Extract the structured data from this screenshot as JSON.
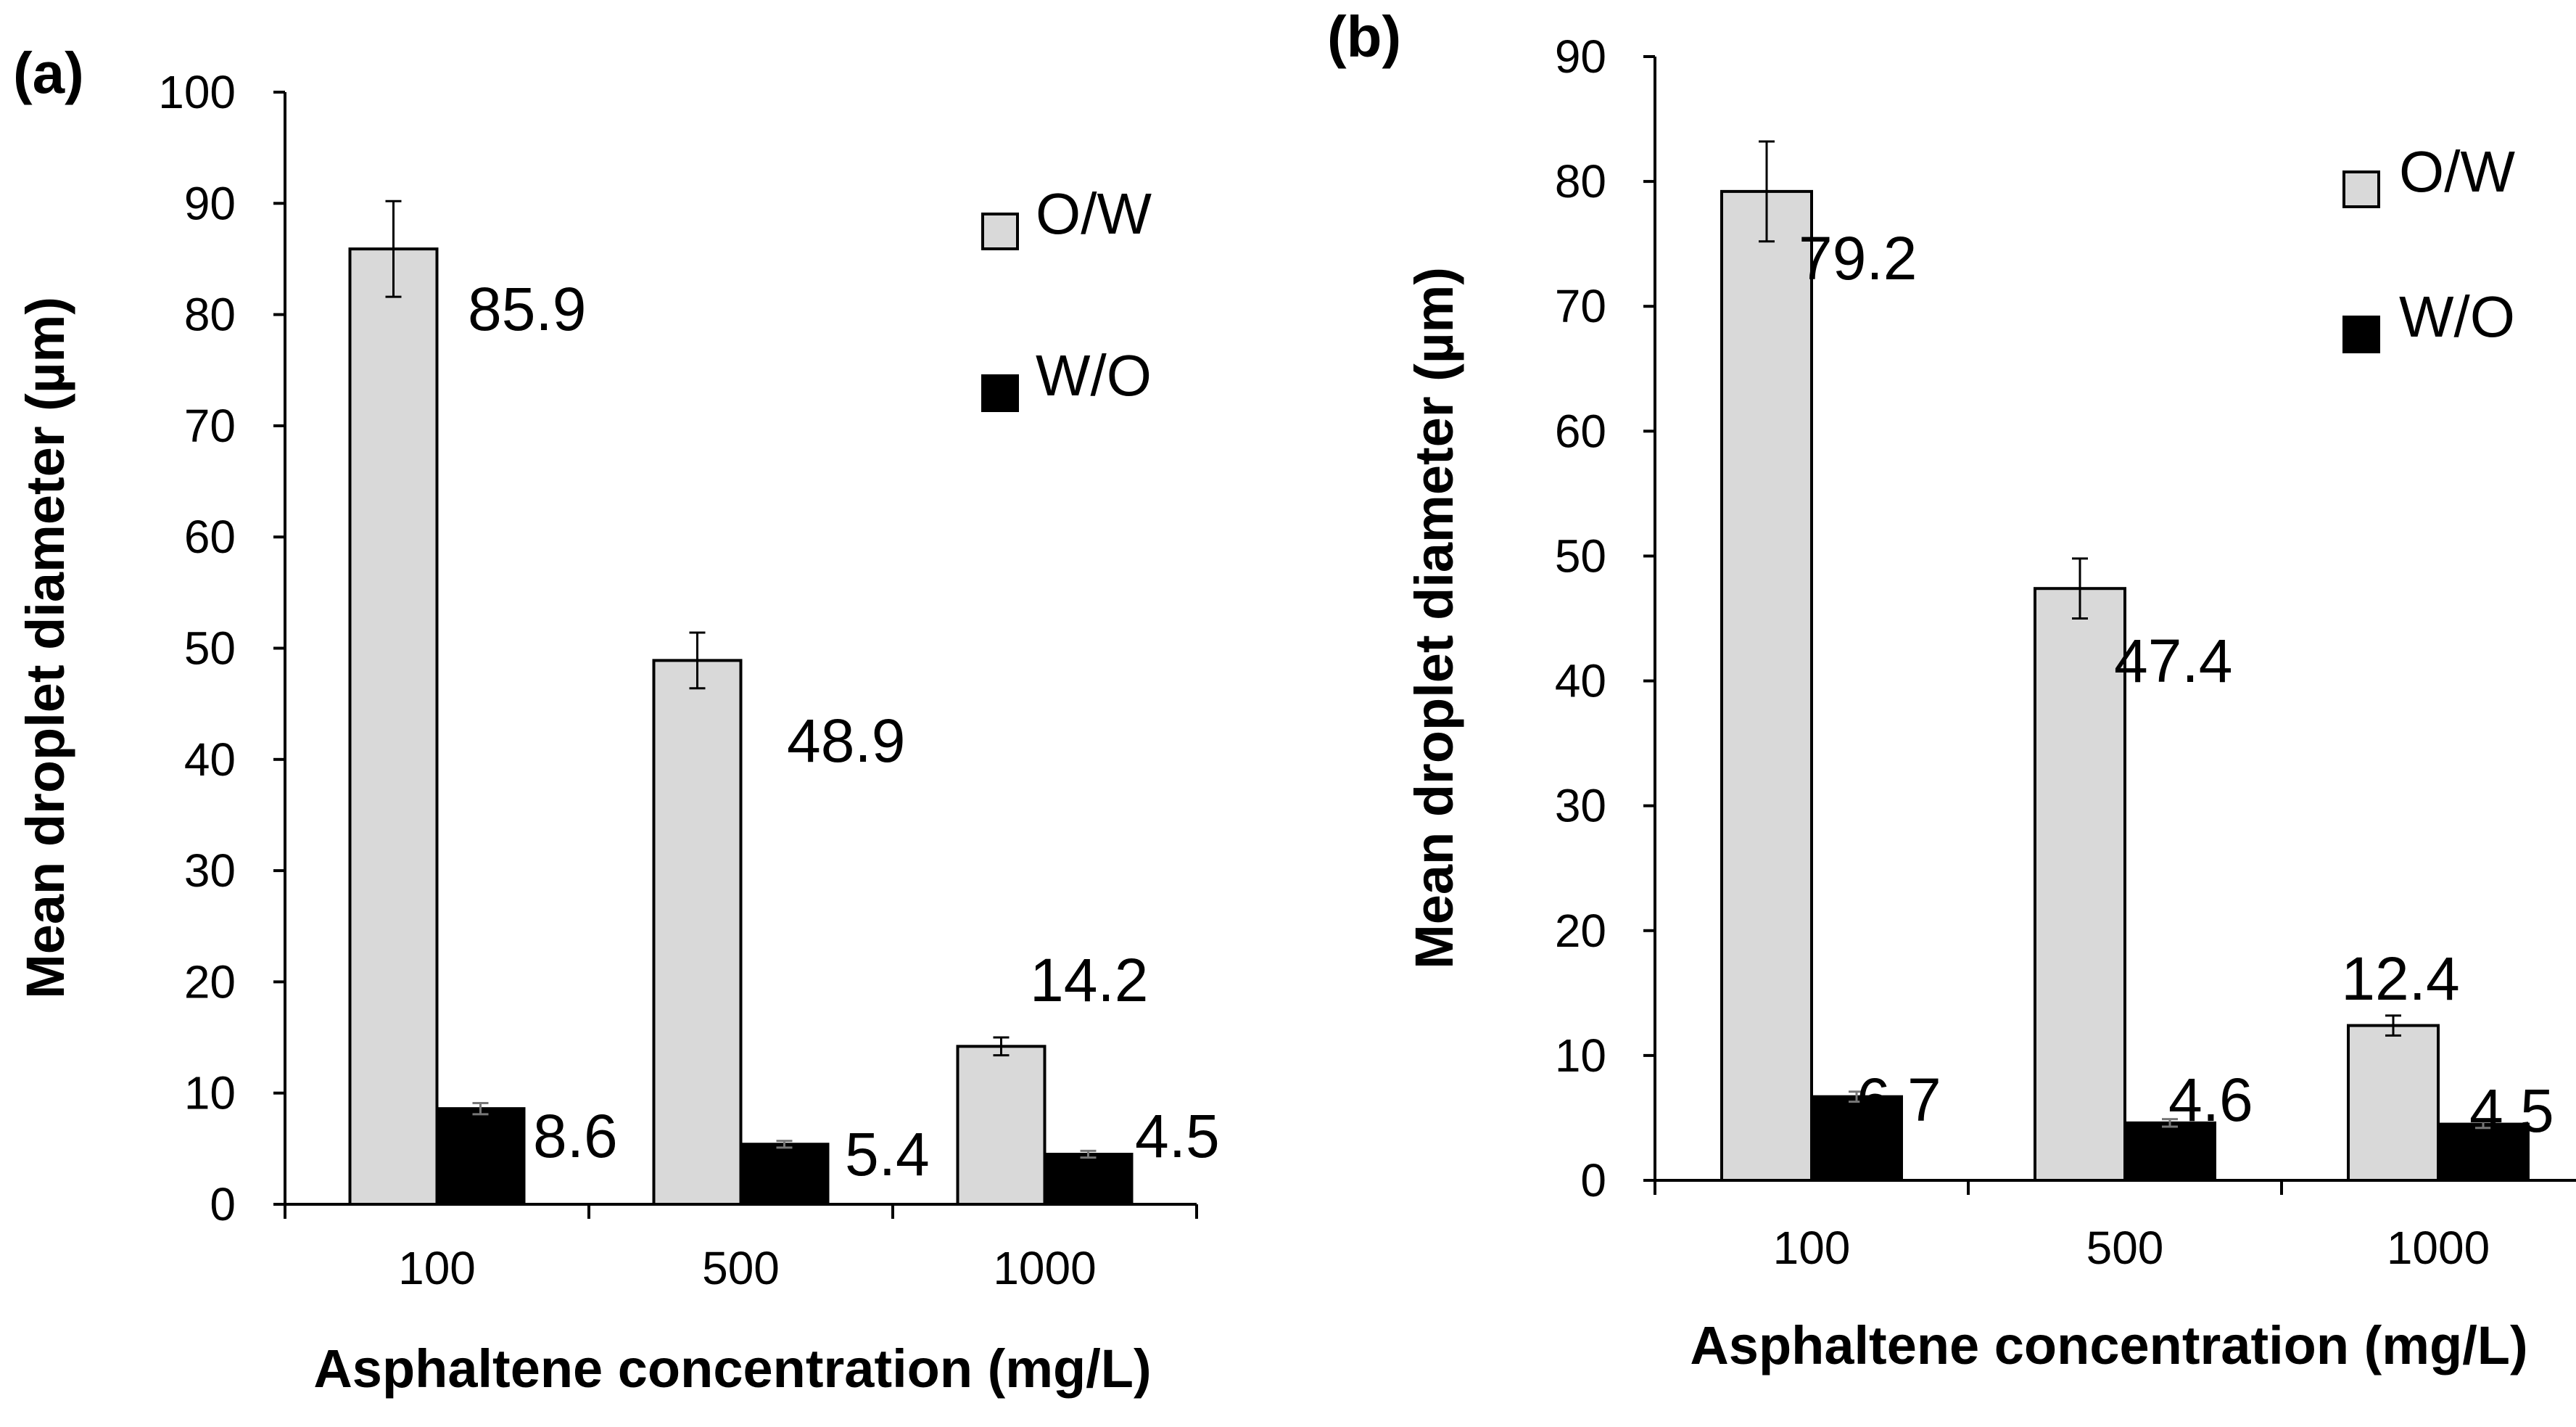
{
  "colors": {
    "ow_fill": "#d9d9d9",
    "wo_fill": "#000000",
    "stroke": "#000000"
  },
  "chart_data": [
    {
      "panel": "(a)",
      "type": "bar",
      "categories": [
        "100",
        "500",
        "1000"
      ],
      "xlabel": "Asphaltene concentration (mg/L)",
      "ylabel": "Mean droplet diameter (µm)",
      "ylim": [
        0,
        100
      ],
      "yticks": [
        "0",
        "10",
        "20",
        "30",
        "40",
        "50",
        "60",
        "70",
        "80",
        "90",
        "100"
      ],
      "legend": "top-right",
      "grid": false,
      "series": [
        {
          "name": "O/W",
          "values": [
            85.9,
            48.9,
            14.2
          ],
          "errors": [
            4.3,
            2.5,
            0.8
          ],
          "labels": [
            "85.9",
            "48.9",
            "14.2"
          ]
        },
        {
          "name": "W/O",
          "values": [
            8.6,
            5.4,
            4.5
          ],
          "errors": [
            0.5,
            0.3,
            0.3
          ],
          "labels": [
            "8.6",
            "5.4",
            "4.5"
          ]
        }
      ]
    },
    {
      "panel": "(b)",
      "type": "bar",
      "categories": [
        "100",
        "500",
        "1000"
      ],
      "xlabel": "Asphaltene concentration (mg/L)",
      "ylabel": "Mean droplet diameter (µm)",
      "ylim": [
        0,
        90
      ],
      "yticks": [
        "0",
        "10",
        "20",
        "30",
        "40",
        "50",
        "60",
        "70",
        "80",
        "90"
      ],
      "legend": "top-right",
      "grid": false,
      "series": [
        {
          "name": "O/W",
          "values": [
            79.2,
            47.4,
            12.4
          ],
          "errors": [
            4.0,
            2.4,
            0.8
          ],
          "labels": [
            "79.2",
            "47.4",
            "12.4"
          ]
        },
        {
          "name": "W/O",
          "values": [
            6.7,
            4.6,
            4.5
          ],
          "errors": [
            0.4,
            0.3,
            0.3
          ],
          "labels": [
            "6.7",
            "4.6",
            "4.5"
          ]
        }
      ]
    }
  ]
}
